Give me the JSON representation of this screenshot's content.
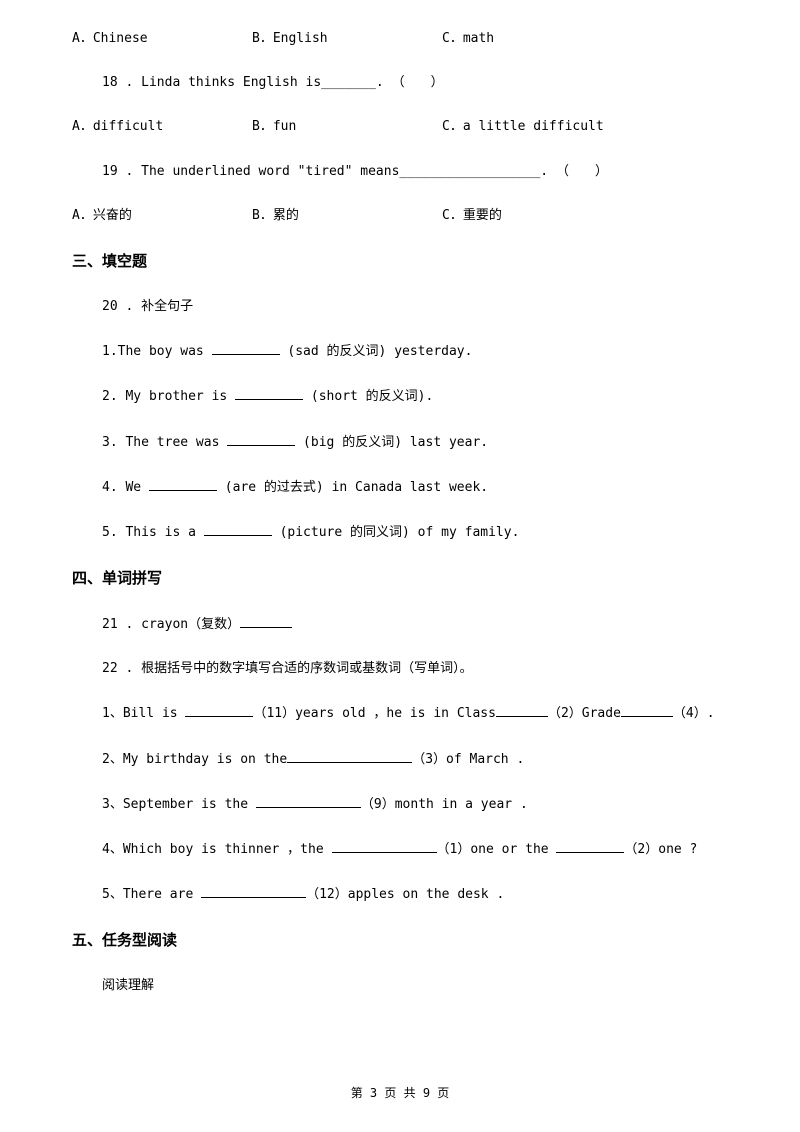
{
  "q_a_chinese": "A．Chinese",
  "q_b_english": "B．English",
  "q_c_math": "C．math",
  "q18": "18 . Linda thinks English is_______. （　　）",
  "q18_a": "A．difficult",
  "q18_b": "B．fun",
  "q18_c": "C．a little difficult",
  "q19": "19 . The underlined word \"tired\" means__________________. （　　）",
  "q19_a": "A．兴奋的",
  "q19_b": "B．累的",
  "q19_c": "C．重要的",
  "section3": "三、填空题",
  "q20": "20 . 补全句子",
  "q20_1_pre": "1.The boy was ",
  "q20_1_post": " (sad 的反义词) yesterday.",
  "q20_2_pre": "2. My brother is ",
  "q20_2_post": " (short 的反义词).",
  "q20_3_pre": "3. The tree was ",
  "q20_3_post": " (big 的反义词) last year.",
  "q20_4_pre": "4. We ",
  "q20_4_post": " (are 的过去式) in Canada last week.",
  "q20_5_pre": "5. This is a ",
  "q20_5_post": " (picture 的同义词) of my family.",
  "section4": "四、单词拼写",
  "q21_pre": "21 . crayon（复数）",
  "q22": "22 . 根据括号中的数字填写合适的序数词或基数词（写单词）。",
  "q22_1_pre": "1、Bill is ",
  "q22_1_mid1": "（11）years old ，he is in Class",
  "q22_1_mid2": "（2）Grade",
  "q22_1_end": "（4）.",
  "q22_2_pre": "2、My birthday is on the",
  "q22_2_post": "（3）of March .",
  "q22_3_pre": "3、September is the ",
  "q22_3_post": "（9）month in a year .",
  "q22_4_pre": "4、Which boy is thinner ，the ",
  "q22_4_mid": "（1）one or the ",
  "q22_4_end": "（2）one ?",
  "q22_5_pre": "5、There are ",
  "q22_5_post": "（12）apples on the desk .",
  "section5": "五、任务型阅读",
  "reading": "阅读理解",
  "footer": "第 3 页 共 9 页"
}
